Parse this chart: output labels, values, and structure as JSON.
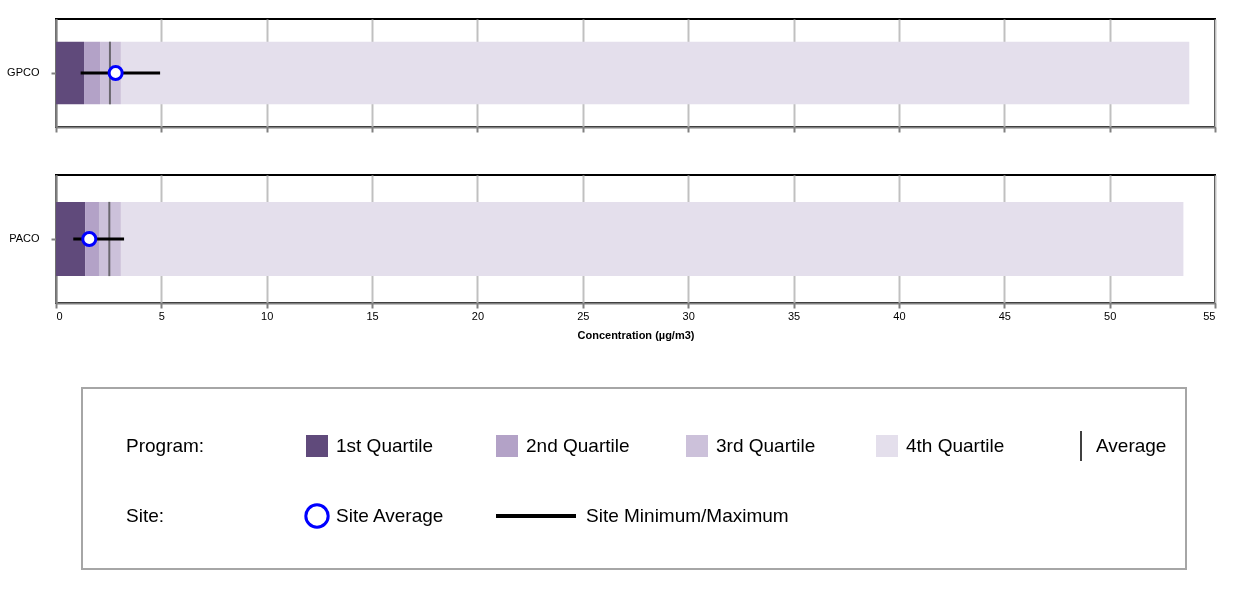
{
  "chart_data": [
    {
      "type": "bar",
      "orientation": "horizontal",
      "stacked": true,
      "categories": [
        "GPCO"
      ],
      "xlim": [
        0,
        55
      ],
      "xticks": [
        0,
        5,
        10,
        15,
        20,
        25,
        30,
        35,
        40,
        45,
        50,
        55
      ],
      "tick_labels": "y",
      "grid": "x",
      "marker": "circle",
      "series": [
        {
          "type": "bar",
          "color": "#604a7b",
          "values": [
            1.33
          ]
        },
        {
          "type": "bar",
          "color": "#b3a2c7",
          "values": [
            0.76
          ]
        },
        {
          "type": "bar",
          "color": "#ccc1da",
          "values": [
            0.99
          ]
        },
        {
          "type": "bar",
          "color": "#e4dfec",
          "values": [
            50.7
          ]
        },
        {
          "type": "scatter",
          "color": "#0000ff",
          "x": [
            "GPCO"
          ],
          "values": [
            2.83
          ],
          "errors": [
            [
              1.17,
              4.94
            ]
          ]
        }
      ],
      "ref_lines": [
        {
          "axis": "x",
          "value": 2.56,
          "color": "#404040"
        }
      ]
    },
    {
      "type": "bar",
      "orientation": "horizontal",
      "stacked": true,
      "categories": [
        "PACO"
      ],
      "xlim": [
        0,
        55
      ],
      "xticks": [
        0,
        5,
        10,
        15,
        20,
        25,
        30,
        35,
        40,
        45,
        50,
        55
      ],
      "grid": "x",
      "legend": "bottom",
      "marker": "circle",
      "xlabel": "Concentration (µg/m3)",
      "series": [
        {
          "name": "1st Quartile",
          "type": "bar",
          "color": "#604a7b",
          "values": [
            1.38
          ]
        },
        {
          "name": "2nd Quartile",
          "type": "bar",
          "color": "#b3a2c7",
          "values": [
            0.66
          ]
        },
        {
          "name": "3rd Quartile",
          "type": "bar",
          "color": "#ccc1da",
          "values": [
            1.04
          ]
        },
        {
          "name": "4th Quartile",
          "type": "bar",
          "color": "#e4dfec",
          "values": [
            50.42
          ]
        },
        {
          "name": "Site Average",
          "type": "scatter",
          "color": "#0000ff",
          "x": [
            "PACO"
          ],
          "values": [
            1.58
          ],
          "errors": [
            [
              0.82,
              3.23
            ]
          ]
        }
      ],
      "ref_lines": [
        {
          "axis": "x",
          "value": 2.53,
          "label": "Average",
          "color": "#404040"
        }
      ],
      "annotations": [
        "Program:",
        "Site:",
        "Site Minimum/Maximum"
      ]
    }
  ]
}
